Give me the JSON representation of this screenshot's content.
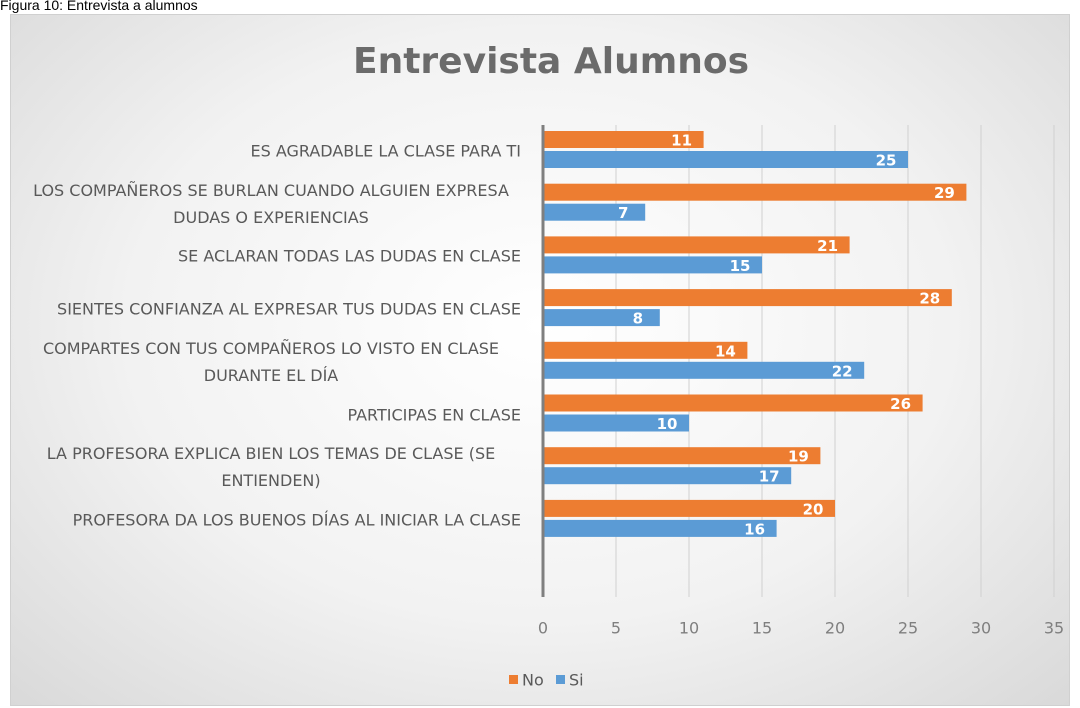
{
  "caption": "Figura 10: Entrevista a alumnos",
  "chart_data": {
    "type": "barh",
    "title": "Entrevista Alumnos",
    "categories": [
      "ES AGRADABLE LA CLASE PARA TI",
      "LOS COMPAÑEROS SE BURLAN CUANDO ALGUIEN EXPRESA DUDAS O EXPERIENCIAS",
      "SE ACLARAN TODAS LAS DUDAS EN CLASE",
      "SIENTES CONFIANZA AL EXPRESAR TUS DUDAS EN CLASE",
      "COMPARTES CON TUS COMPAÑEROS LO VISTO EN CLASE DURANTE EL DÍA",
      "PARTICIPAS EN CLASE",
      "LA PROFESORA EXPLICA BIEN LOS TEMAS DE CLASE (SE ENTIENDEN)",
      "PROFESORA DA LOS BUENOS DÍAS AL INICIAR LA CLASE"
    ],
    "series": [
      {
        "name": "No",
        "color": "#ed7d31",
        "values": [
          11,
          29,
          21,
          28,
          14,
          26,
          19,
          20
        ]
      },
      {
        "name": "Si",
        "color": "#5b9bd5",
        "values": [
          25,
          7,
          15,
          8,
          22,
          10,
          17,
          16
        ]
      }
    ],
    "xlim": [
      0,
      35
    ],
    "xticks": [
      0,
      5,
      10,
      15,
      20,
      25,
      30,
      35
    ],
    "grid": true,
    "legend": "bottom"
  }
}
